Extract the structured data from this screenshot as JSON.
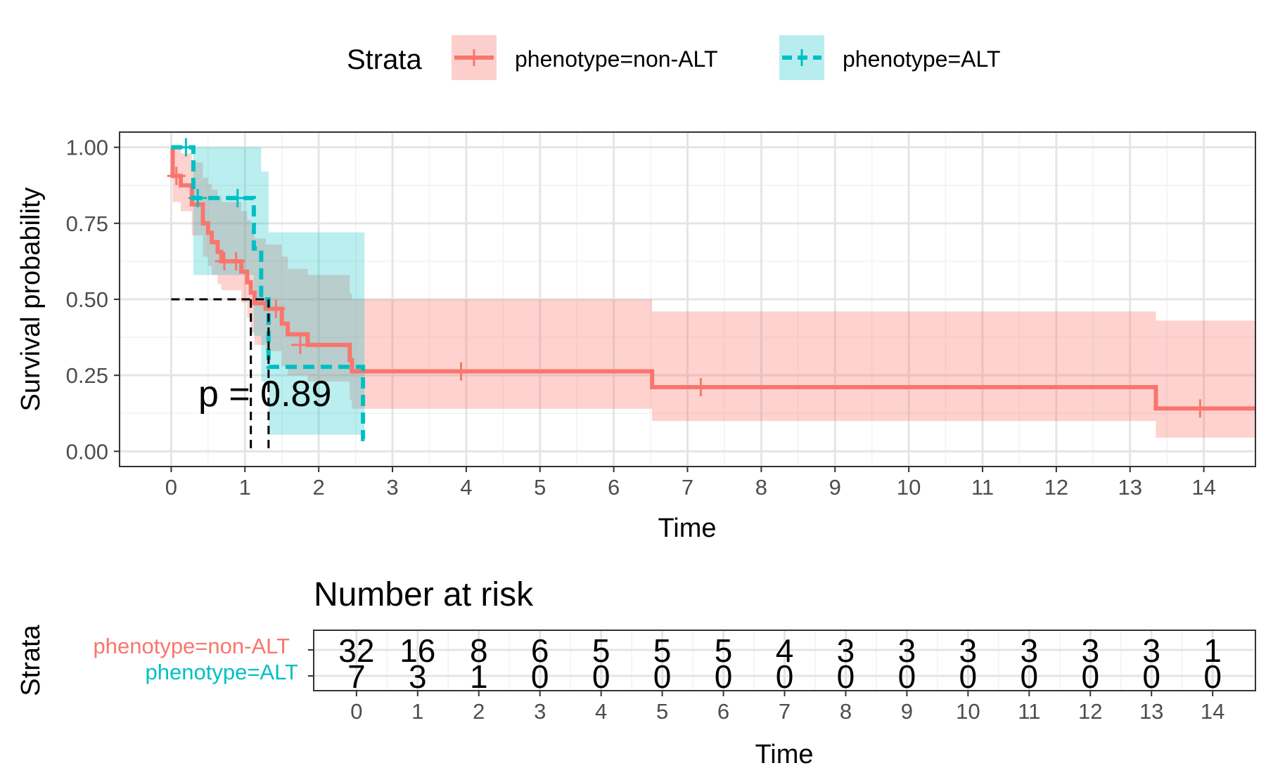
{
  "colors": {
    "nonalt": "#F8766D",
    "alt": "#00BFC4",
    "grid_major": "#E5E5E5",
    "grid_minor": "#F2F2F2",
    "axis_text": "#4D4D4D",
    "text": "#000000"
  },
  "legend": {
    "title": "Strata",
    "items": [
      {
        "key": "nonalt",
        "label": "phenotype=non-ALT"
      },
      {
        "key": "alt",
        "label": "phenotype=ALT"
      }
    ]
  },
  "chart_data": [
    {
      "type": "line",
      "subtype": "kaplan-meier",
      "title": "",
      "xlabel": "Time",
      "ylabel": "Survival probability",
      "xlim": [
        -0.7,
        14.7
      ],
      "ylim": [
        -0.05,
        1.05
      ],
      "xticks": [
        0,
        1,
        2,
        3,
        4,
        5,
        6,
        7,
        8,
        9,
        10,
        11,
        12,
        13,
        14
      ],
      "yticks": [
        0,
        0.25,
        0.5,
        0.75,
        1.0
      ],
      "ytick_labels": [
        "0.00",
        "0.25",
        "0.50",
        "0.75",
        "1.00"
      ],
      "grid": true,
      "legend_position": "top",
      "pvalue": "p = 0.89",
      "median_lines": {
        "y": 0.5,
        "x": [
          1.08,
          1.32
        ]
      },
      "series": [
        {
          "name": "phenotype=non-ALT",
          "key": "nonalt",
          "steps": [
            [
              0,
              1.0
            ],
            [
              0.02,
              0.906
            ],
            [
              0.13,
              0.875
            ],
            [
              0.28,
              0.812
            ],
            [
              0.43,
              0.75
            ],
            [
              0.5,
              0.719
            ],
            [
              0.55,
              0.688
            ],
            [
              0.63,
              0.656
            ],
            [
              0.68,
              0.625
            ],
            [
              0.95,
              0.591
            ],
            [
              1.03,
              0.556
            ],
            [
              1.08,
              0.522
            ],
            [
              1.13,
              0.487
            ],
            [
              1.28,
              0.469
            ],
            [
              1.5,
              0.42
            ],
            [
              1.58,
              0.385
            ],
            [
              1.85,
              0.35
            ],
            [
              2.0,
              0.35
            ],
            [
              2.42,
              0.3
            ],
            [
              2.45,
              0.263
            ],
            [
              6.52,
              0.211
            ],
            [
              13.35,
              0.141
            ],
            [
              14.7,
              0.141
            ]
          ],
          "ci": [
            [
              0,
              1.0,
              1.0
            ],
            [
              0.02,
              1.0,
              0.82
            ],
            [
              0.13,
              0.98,
              0.79
            ],
            [
              0.28,
              0.95,
              0.71
            ],
            [
              0.43,
              0.9,
              0.64
            ],
            [
              0.5,
              0.88,
              0.61
            ],
            [
              0.55,
              0.86,
              0.58
            ],
            [
              0.63,
              0.84,
              0.55
            ],
            [
              0.68,
              0.82,
              0.53
            ],
            [
              0.95,
              0.79,
              0.49
            ],
            [
              1.03,
              0.76,
              0.44
            ],
            [
              1.08,
              0.73,
              0.39
            ],
            [
              1.13,
              0.7,
              0.35
            ],
            [
              1.28,
              0.68,
              0.33
            ],
            [
              1.5,
              0.64,
              0.28
            ],
            [
              1.58,
              0.6,
              0.25
            ],
            [
              1.85,
              0.58,
              0.23
            ],
            [
              2.42,
              0.52,
              0.17
            ],
            [
              2.45,
              0.5,
              0.14
            ],
            [
              6.52,
              0.46,
              0.1
            ],
            [
              13.35,
              0.43,
              0.045
            ],
            [
              14.7,
              0.43,
              0.045
            ]
          ],
          "censors": [
            [
              0.07,
              0.906
            ],
            [
              0.72,
              0.625
            ],
            [
              0.88,
              0.625
            ],
            [
              1.42,
              0.469
            ],
            [
              1.75,
              0.35
            ],
            [
              3.93,
              0.263
            ],
            [
              7.18,
              0.211
            ],
            [
              13.95,
              0.141
            ]
          ]
        },
        {
          "name": "phenotype=ALT",
          "key": "alt",
          "steps": [
            [
              0,
              1.0
            ],
            [
              0.3,
              0.833
            ],
            [
              1.12,
              0.667
            ],
            [
              1.22,
              0.5
            ],
            [
              1.32,
              0.278
            ],
            [
              2.6,
              0.04
            ],
            [
              2.62,
              0.04
            ]
          ],
          "ci": [
            [
              0,
              1.0,
              1.0
            ],
            [
              0.3,
              1.0,
              0.58
            ],
            [
              1.12,
              1.0,
              0.38
            ],
            [
              1.22,
              0.92,
              0.23
            ],
            [
              1.32,
              0.72,
              0.055
            ],
            [
              2.6,
              0.72,
              0.055
            ],
            [
              2.62,
              0.72,
              0.055
            ]
          ],
          "censors": [
            [
              0.2,
              1.0
            ],
            [
              0.36,
              0.833
            ],
            [
              0.9,
              0.833
            ]
          ]
        }
      ]
    },
    {
      "type": "table",
      "title": "Number at risk",
      "xlabel": "Time",
      "ylabel": "Strata",
      "xlim": [
        -0.7,
        14.7
      ],
      "xticks": [
        0,
        1,
        2,
        3,
        4,
        5,
        6,
        7,
        8,
        9,
        10,
        11,
        12,
        13,
        14
      ],
      "rows": [
        {
          "name": "phenotype=non-ALT",
          "key": "nonalt",
          "values": [
            32,
            16,
            8,
            6,
            5,
            5,
            5,
            4,
            3,
            3,
            3,
            3,
            3,
            3,
            1
          ]
        },
        {
          "name": "phenotype=ALT",
          "key": "alt",
          "values": [
            7,
            3,
            1,
            0,
            0,
            0,
            0,
            0,
            0,
            0,
            0,
            0,
            0,
            0,
            0
          ]
        }
      ]
    }
  ]
}
